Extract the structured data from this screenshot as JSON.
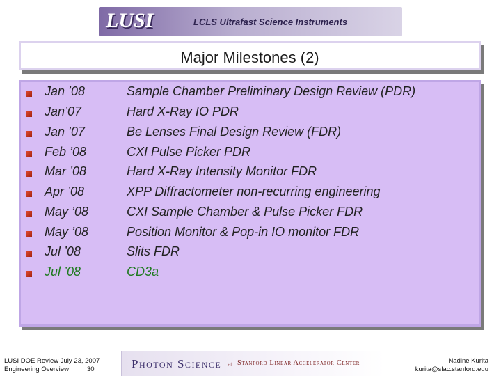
{
  "header": {
    "logo_text": "LUSI",
    "subtitle": "LCLS Ultrafast Science Instruments"
  },
  "title": "Major Milestones (2)",
  "milestones": [
    {
      "date": "Jan ’08",
      "event": "Sample Chamber Preliminary Design Review (PDR)"
    },
    {
      "date": "Jan’07",
      "event": "Hard X-Ray IO PDR"
    },
    {
      "date": "Jan ’07",
      "event": "Be Lenses Final Design Review (FDR)"
    },
    {
      "date": "Feb ’08",
      "event": "CXI Pulse Picker PDR"
    },
    {
      "date": "Mar ’08",
      "event": "Hard X-Ray Intensity Monitor FDR"
    },
    {
      "date": "Apr ’08",
      "event": "XPP Diffractometer non-recurring engineering"
    },
    {
      "date": "May ’08",
      "event": "CXI Sample Chamber & Pulse Picker FDR"
    },
    {
      "date": "May ’08",
      "event": "Position Monitor & Pop-in IO monitor FDR"
    },
    {
      "date": "Jul ’08",
      "event": "Slits FDR"
    },
    {
      "date": "Jul ’08",
      "event": "CD3a"
    }
  ],
  "highlight_color": "#1f7a1f",
  "footer": {
    "left_line1": "LUSI DOE Review July 23, 2007",
    "left_line2": "Engineering Overview",
    "page_number": "30",
    "brand": "Photon Science",
    "brand_at": "at",
    "brand_org": "Stanford Linear Accelerator Center",
    "author": "Nadine Kurita",
    "email": "kurita@slac.stanford.edu"
  }
}
